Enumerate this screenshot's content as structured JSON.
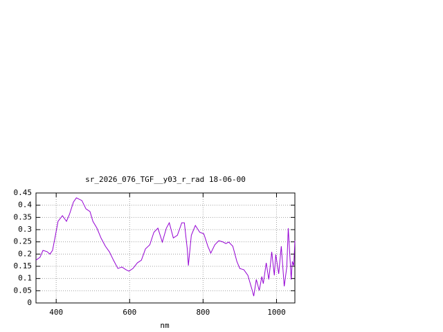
{
  "chart_data": {
    "type": "line",
    "title": "sr_2026_076_TGF__y03_r_rad 18-06-00",
    "x_label": "nm",
    "x": [
      345,
      356,
      364,
      375,
      383,
      390,
      398,
      405,
      417,
      428,
      436,
      447,
      455,
      470,
      481,
      492,
      500,
      511,
      522,
      534,
      545,
      556,
      568,
      579,
      590,
      598,
      609,
      621,
      632,
      643,
      655,
      666,
      677,
      689,
      700,
      708,
      719,
      730,
      742,
      749,
      757,
      760,
      768,
      779,
      791,
      802,
      813,
      821,
      832,
      843,
      855,
      862,
      870,
      881,
      892,
      900,
      911,
      922,
      934,
      938,
      945,
      953,
      960,
      964,
      972,
      979,
      987,
      994,
      998,
      1006,
      1013,
      1021,
      1028,
      1032,
      1040,
      1043,
      1047,
      1050
    ],
    "series": [
      {
        "color": "#9400d3",
        "values": [
          0.175,
          0.187,
          0.215,
          0.21,
          0.2,
          0.215,
          0.277,
          0.334,
          0.357,
          0.334,
          0.362,
          0.413,
          0.43,
          0.419,
          0.385,
          0.374,
          0.334,
          0.306,
          0.266,
          0.232,
          0.209,
          0.175,
          0.141,
          0.147,
          0.136,
          0.13,
          0.141,
          0.164,
          0.175,
          0.221,
          0.238,
          0.289,
          0.306,
          0.249,
          0.306,
          0.328,
          0.266,
          0.277,
          0.328,
          0.328,
          0.221,
          0.153,
          0.277,
          0.317,
          0.289,
          0.283,
          0.232,
          0.204,
          0.238,
          0.255,
          0.249,
          0.243,
          0.249,
          0.232,
          0.17,
          0.141,
          0.136,
          0.113,
          0.051,
          0.028,
          0.096,
          0.051,
          0.108,
          0.079,
          0.164,
          0.096,
          0.209,
          0.113,
          0.198,
          0.119,
          0.232,
          0.068,
          0.147,
          0.306,
          0.096,
          0.17,
          0.153,
          0.255
        ]
      }
    ],
    "xlim": [
      345,
      1050
    ],
    "xticks": [
      400,
      600,
      800,
      1000
    ],
    "ylim": [
      0,
      0.45
    ],
    "yticks": [
      0,
      0.05,
      0.1,
      0.15,
      0.2,
      0.25,
      0.3,
      0.35,
      0.4,
      0.45
    ],
    "grid": true
  }
}
